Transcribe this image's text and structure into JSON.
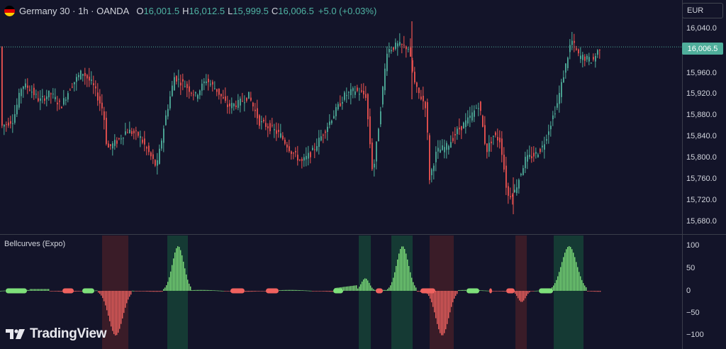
{
  "header": {
    "symbol": "Germany 30 · 1h · OANDA",
    "ohlc": [
      {
        "label": "O",
        "value": "16,001.5"
      },
      {
        "label": "H",
        "value": "16,012.5"
      },
      {
        "label": "L",
        "value": "15,999.5"
      },
      {
        "label": "C",
        "value": "16,006.5"
      }
    ],
    "change": "+5.0 (+0.03%)"
  },
  "currency": "EUR",
  "last_price": "16,006.5",
  "indicator": {
    "name": "Bellcurves (Expo)"
  },
  "price_ticks": [
    "16,040.0",
    "15,960.0",
    "15,920.0",
    "15,880.0",
    "15,840.0",
    "15,800.0",
    "15,760.0",
    "15,720.0",
    "15,680.0"
  ],
  "osc_ticks": [
    "100",
    "50",
    "0",
    "−50",
    "−100"
  ],
  "logo": "TradingView",
  "colors": {
    "up": "#4fae9b",
    "down": "#ef5350",
    "bull": "#7ee07a",
    "bear": "#f0625f",
    "bg": "#131429"
  }
}
